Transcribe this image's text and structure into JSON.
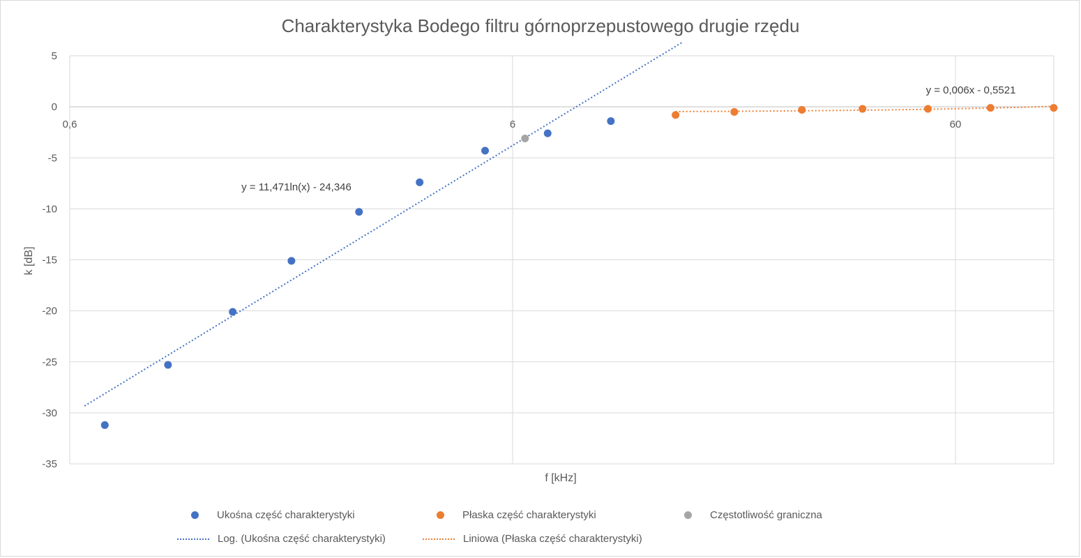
{
  "chart_data": {
    "type": "scatter",
    "title": "Charakterystyka Bodego filtru górnoprzepustowego  drugie rzędu",
    "xlabel": "f [kHz]",
    "ylabel": "k [dB]",
    "x_scale": "log",
    "xlim": [
      0.6,
      84
    ],
    "ylim": [
      -35,
      5
    ],
    "x_ticks": [
      "0,6",
      "6",
      "60"
    ],
    "y_ticks": [
      "5",
      "0",
      "-5",
      "-10",
      "-15",
      "-20",
      "-25",
      "-30",
      "-35"
    ],
    "grid": true,
    "legend_position": "bottom",
    "series": [
      {
        "name": "Ukośna część charakterystyki",
        "color": "#4472c4",
        "x": [
          0.72,
          1.0,
          1.4,
          1.9,
          2.7,
          3.7,
          5.2,
          7.2,
          10.0
        ],
        "y": [
          -31.2,
          -25.3,
          -20.1,
          -15.1,
          -10.3,
          -7.4,
          -4.3,
          -2.6,
          -1.4
        ]
      },
      {
        "name": "Płaska część charakterystyki",
        "color": "#ed7d31",
        "x": [
          14.0,
          19.0,
          27.0,
          37.0,
          52.0,
          72.0,
          100.0
        ],
        "y": [
          -0.8,
          -0.5,
          -0.3,
          -0.2,
          -0.2,
          -0.1,
          -0.1
        ]
      },
      {
        "name": "Częstotliwość graniczna",
        "color": "#a5a5a5",
        "x": [
          6.4
        ],
        "y": [
          -3.1
        ]
      }
    ],
    "trendlines": [
      {
        "name": "Log. (Ukośna część charakterystyki)",
        "color": "#4472c4",
        "kind": "logarithmic",
        "equation": "y = 11,471ln(x) - 24,346",
        "a": 11.471,
        "b": -24.346,
        "x_range": [
          0.72,
          10.0
        ]
      },
      {
        "name": "Liniowa (Płaska część charakterystyki)",
        "color": "#ed7d31",
        "kind": "linear",
        "equation": "y = 0,006x - 0,5521",
        "a": 0.006,
        "b": -0.5521,
        "x_range": [
          14.0,
          100.0
        ]
      }
    ]
  }
}
